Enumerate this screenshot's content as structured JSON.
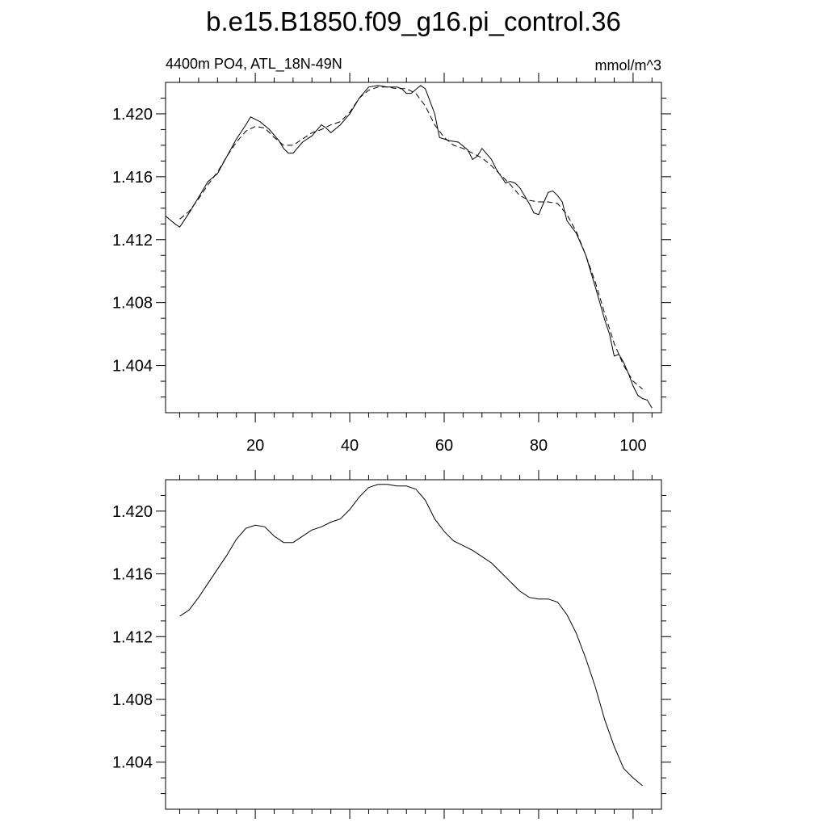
{
  "page": {
    "title": "b.e15.B1850.f09_g16.pi_control.36"
  },
  "chart_data": [
    {
      "type": "line",
      "left_label": "4400m PO4, ATL_18N-49N",
      "right_label": "mmol/m^3",
      "xlim": [
        1,
        106
      ],
      "ylim": [
        1.401,
        1.422
      ],
      "x_ticks": [
        20,
        40,
        60,
        80,
        100
      ],
      "y_ticks": [
        1.404,
        1.408,
        1.412,
        1.416,
        1.42
      ],
      "x_tick_labels": [
        "20",
        "40",
        "60",
        "80",
        "100"
      ],
      "y_tick_labels": [
        "1.404",
        "1.408",
        "1.412",
        "1.416",
        "1.420"
      ],
      "series": [
        {
          "style": "solid",
          "points": [
            [
              1,
              1.4135
            ],
            [
              3,
              1.413
            ],
            [
              4,
              1.4128
            ],
            [
              6,
              1.4137
            ],
            [
              8,
              1.4147
            ],
            [
              10,
              1.4157
            ],
            [
              12,
              1.4162
            ],
            [
              14,
              1.4173
            ],
            [
              16,
              1.4184
            ],
            [
              18,
              1.4193
            ],
            [
              19,
              1.4198
            ],
            [
              21,
              1.4195
            ],
            [
              23,
              1.419
            ],
            [
              25,
              1.4183
            ],
            [
              26,
              1.4178
            ],
            [
              27,
              1.4175
            ],
            [
              28,
              1.4175
            ],
            [
              30,
              1.4182
            ],
            [
              32,
              1.4186
            ],
            [
              34,
              1.4193
            ],
            [
              35,
              1.4191
            ],
            [
              36,
              1.4188
            ],
            [
              38,
              1.4193
            ],
            [
              40,
              1.42
            ],
            [
              42,
              1.421
            ],
            [
              44,
              1.4217
            ],
            [
              46,
              1.4218
            ],
            [
              48,
              1.4217
            ],
            [
              50,
              1.4217
            ],
            [
              51,
              1.4216
            ],
            [
              52,
              1.4213
            ],
            [
              53,
              1.4213
            ],
            [
              55,
              1.4218
            ],
            [
              56,
              1.4216
            ],
            [
              58,
              1.42
            ],
            [
              59,
              1.4185
            ],
            [
              61,
              1.4183
            ],
            [
              63,
              1.4182
            ],
            [
              65,
              1.4177
            ],
            [
              66,
              1.4171
            ],
            [
              67,
              1.4173
            ],
            [
              68,
              1.4178
            ],
            [
              70,
              1.4171
            ],
            [
              71,
              1.4165
            ],
            [
              73,
              1.4156
            ],
            [
              74,
              1.4157
            ],
            [
              75,
              1.4156
            ],
            [
              76,
              1.4153
            ],
            [
              78,
              1.4143
            ],
            [
              79,
              1.4137
            ],
            [
              80,
              1.4136
            ],
            [
              81,
              1.4143
            ],
            [
              82,
              1.415
            ],
            [
              83,
              1.4151
            ],
            [
              84,
              1.4148
            ],
            [
              85,
              1.4144
            ],
            [
              86,
              1.4132
            ],
            [
              88,
              1.4124
            ],
            [
              90,
              1.411
            ],
            [
              92,
              1.409
            ],
            [
              94,
              1.4069
            ],
            [
              95,
              1.406
            ],
            [
              96,
              1.4046
            ],
            [
              97,
              1.4047
            ],
            [
              98,
              1.4042
            ],
            [
              99,
              1.4035
            ],
            [
              100,
              1.4027
            ],
            [
              101,
              1.4021
            ],
            [
              102,
              1.4019
            ],
            [
              103,
              1.4018
            ],
            [
              104,
              1.4013
            ]
          ]
        },
        {
          "style": "dashed",
          "points": [
            [
              4,
              1.4133
            ],
            [
              6,
              1.4138
            ],
            [
              8,
              1.4146
            ],
            [
              10,
              1.4155
            ],
            [
              12,
              1.4163
            ],
            [
              14,
              1.4173
            ],
            [
              16,
              1.4182
            ],
            [
              18,
              1.4189
            ],
            [
              20,
              1.4192
            ],
            [
              22,
              1.4191
            ],
            [
              24,
              1.4185
            ],
            [
              26,
              1.418
            ],
            [
              28,
              1.418
            ],
            [
              30,
              1.4184
            ],
            [
              32,
              1.4188
            ],
            [
              34,
              1.419
            ],
            [
              36,
              1.4193
            ],
            [
              38,
              1.4195
            ],
            [
              40,
              1.4201
            ],
            [
              42,
              1.421
            ],
            [
              44,
              1.4215
            ],
            [
              46,
              1.4217
            ],
            [
              48,
              1.4217
            ],
            [
              50,
              1.4216
            ],
            [
              52,
              1.4216
            ],
            [
              54,
              1.4213
            ],
            [
              56,
              1.4205
            ],
            [
              58,
              1.4193
            ],
            [
              60,
              1.4185
            ],
            [
              62,
              1.418
            ],
            [
              64,
              1.4178
            ],
            [
              66,
              1.4175
            ],
            [
              68,
              1.4172
            ],
            [
              70,
              1.4167
            ],
            [
              72,
              1.4161
            ],
            [
              74,
              1.4155
            ],
            [
              76,
              1.4148
            ],
            [
              78,
              1.4145
            ],
            [
              80,
              1.4144
            ],
            [
              82,
              1.4144
            ],
            [
              84,
              1.4143
            ],
            [
              86,
              1.4136
            ],
            [
              88,
              1.4125
            ],
            [
              90,
              1.411
            ],
            [
              92,
              1.4093
            ],
            [
              94,
              1.4073
            ],
            [
              96,
              1.4054
            ],
            [
              98,
              1.404
            ],
            [
              100,
              1.403
            ],
            [
              102,
              1.4025
            ]
          ]
        }
      ]
    },
    {
      "type": "line",
      "xlim": [
        1,
        106
      ],
      "ylim": [
        1.401,
        1.422
      ],
      "x_ticks": [
        20,
        40,
        60,
        80,
        100
      ],
      "y_ticks": [
        1.404,
        1.408,
        1.412,
        1.416,
        1.42
      ],
      "y_tick_labels": [
        "1.404",
        "1.408",
        "1.412",
        "1.416",
        "1.420"
      ],
      "series": [
        {
          "style": "solid",
          "points": [
            [
              4,
              1.4133
            ],
            [
              6,
              1.4137
            ],
            [
              8,
              1.4145
            ],
            [
              10,
              1.4154
            ],
            [
              12,
              1.4163
            ],
            [
              14,
              1.4172
            ],
            [
              16,
              1.4182
            ],
            [
              18,
              1.4189
            ],
            [
              20,
              1.4191
            ],
            [
              22,
              1.419
            ],
            [
              24,
              1.4184
            ],
            [
              26,
              1.418
            ],
            [
              28,
              1.418
            ],
            [
              30,
              1.4184
            ],
            [
              32,
              1.4188
            ],
            [
              34,
              1.419
            ],
            [
              36,
              1.4193
            ],
            [
              38,
              1.4195
            ],
            [
              40,
              1.4201
            ],
            [
              42,
              1.4209
            ],
            [
              44,
              1.4215
            ],
            [
              46,
              1.4217
            ],
            [
              48,
              1.4217
            ],
            [
              50,
              1.4216
            ],
            [
              52,
              1.4216
            ],
            [
              54,
              1.4214
            ],
            [
              56,
              1.4207
            ],
            [
              58,
              1.4195
            ],
            [
              60,
              1.4187
            ],
            [
              62,
              1.4181
            ],
            [
              64,
              1.4178
            ],
            [
              66,
              1.4175
            ],
            [
              68,
              1.4171
            ],
            [
              70,
              1.4167
            ],
            [
              72,
              1.4161
            ],
            [
              74,
              1.4155
            ],
            [
              76,
              1.4149
            ],
            [
              78,
              1.4145
            ],
            [
              80,
              1.4144
            ],
            [
              82,
              1.4144
            ],
            [
              84,
              1.4142
            ],
            [
              86,
              1.4134
            ],
            [
              88,
              1.4122
            ],
            [
              90,
              1.4106
            ],
            [
              92,
              1.4088
            ],
            [
              94,
              1.4067
            ],
            [
              96,
              1.405
            ],
            [
              98,
              1.4036
            ],
            [
              100,
              1.403
            ],
            [
              102,
              1.4025
            ]
          ]
        }
      ]
    }
  ]
}
